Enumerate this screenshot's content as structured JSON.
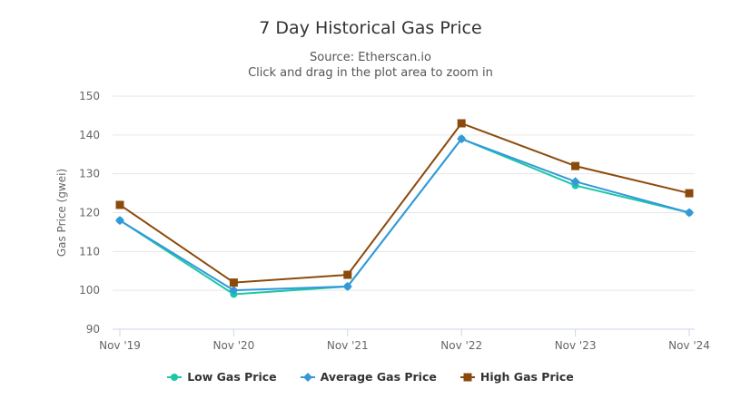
{
  "chart_data": {
    "type": "line",
    "title": "7 Day Historical Gas Price",
    "subtitle": "Source: Etherscan.io",
    "hint": "Click and drag in the plot area to zoom in",
    "xlabel": "",
    "ylabel": "Gas Price (gwei)",
    "ylim": [
      90,
      150
    ],
    "yticks": [
      90,
      100,
      110,
      120,
      130,
      140,
      150
    ],
    "categories": [
      "Nov '19",
      "Nov '20",
      "Nov '21",
      "Nov '22",
      "Nov '23",
      "Nov '24"
    ],
    "grid": true,
    "legend": "bottom-center",
    "series": [
      {
        "name": "Low Gas Price",
        "color": "#1bc7a6",
        "marker": "circle",
        "values": [
          118,
          99,
          101,
          139,
          127,
          120
        ]
      },
      {
        "name": "Average Gas Price",
        "color": "#3498db",
        "marker": "diamond",
        "values": [
          118,
          100,
          101,
          139,
          128,
          120
        ]
      },
      {
        "name": "High Gas Price",
        "color": "#8b4a0b",
        "marker": "square",
        "values": [
          122,
          102,
          104,
          143,
          132,
          125
        ]
      }
    ]
  }
}
